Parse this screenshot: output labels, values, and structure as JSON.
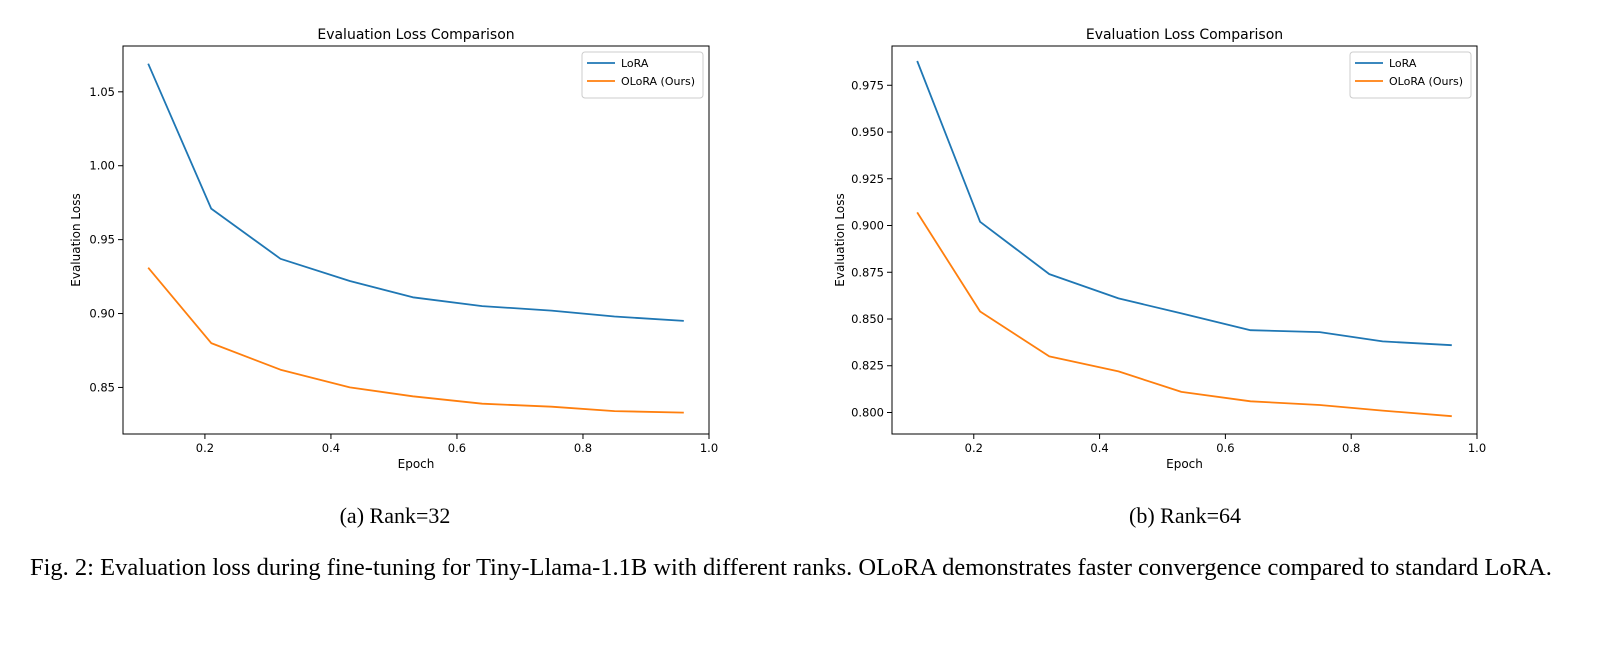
{
  "chart_data": [
    {
      "type": "line",
      "title": "Evaluation Loss Comparison",
      "xlabel": "Epoch",
      "ylabel": "Evaluation Loss",
      "xlim": [
        0.07,
        1.0
      ],
      "ylim": [
        0.8185,
        1.081
      ],
      "xticks": [
        0.2,
        0.4,
        0.6,
        0.8,
        1.0
      ],
      "xtick_labels": [
        "0.2",
        "0.4",
        "0.6",
        "0.8",
        "1.0"
      ],
      "yticks": [
        0.85,
        0.9,
        0.95,
        1.0,
        1.05
      ],
      "ytick_labels": [
        "0.85",
        "0.90",
        "0.95",
        "1.00",
        "1.05"
      ],
      "grid": false,
      "legend_position": "top-right",
      "x": [
        0.11,
        0.21,
        0.32,
        0.43,
        0.53,
        0.64,
        0.75,
        0.85,
        0.96
      ],
      "series": [
        {
          "name": "LoRA",
          "color": "#1f77b4",
          "values": [
            1.069,
            0.971,
            0.937,
            0.922,
            0.911,
            0.905,
            0.902,
            0.898,
            0.895
          ]
        },
        {
          "name": "OLoRA (Ours)",
          "color": "#ff7f0e",
          "values": [
            0.931,
            0.88,
            0.862,
            0.85,
            0.844,
            0.839,
            0.837,
            0.834,
            0.833
          ]
        }
      ],
      "subcaption": "(a) Rank=32"
    },
    {
      "type": "line",
      "title": "Evaluation Loss Comparison",
      "xlabel": "Epoch",
      "ylabel": "Evaluation Loss",
      "xlim": [
        0.07,
        1.0
      ],
      "ylim": [
        0.7885,
        0.996
      ],
      "xticks": [
        0.2,
        0.4,
        0.6,
        0.8,
        1.0
      ],
      "xtick_labels": [
        "0.2",
        "0.4",
        "0.6",
        "0.8",
        "1.0"
      ],
      "yticks": [
        0.8,
        0.825,
        0.85,
        0.875,
        0.9,
        0.925,
        0.95,
        0.975
      ],
      "ytick_labels": [
        "0.800",
        "0.825",
        "0.850",
        "0.875",
        "0.900",
        "0.925",
        "0.950",
        "0.975"
      ],
      "grid": false,
      "legend_position": "top-right",
      "x": [
        0.11,
        0.21,
        0.32,
        0.43,
        0.53,
        0.64,
        0.75,
        0.85,
        0.96
      ],
      "series": [
        {
          "name": "LoRA",
          "color": "#1f77b4",
          "values": [
            0.988,
            0.902,
            0.874,
            0.861,
            0.853,
            0.844,
            0.843,
            0.838,
            0.836
          ]
        },
        {
          "name": "OLoRA (Ours)",
          "color": "#ff7f0e",
          "values": [
            0.907,
            0.854,
            0.83,
            0.822,
            0.811,
            0.806,
            0.804,
            0.801,
            0.798
          ]
        }
      ],
      "subcaption": "(b) Rank=64"
    }
  ],
  "caption": "Fig. 2: Evaluation loss during fine-tuning for Tiny-Llama-1.1B with different ranks. OLoRA demonstrates faster convergence compared to standard LoRA."
}
